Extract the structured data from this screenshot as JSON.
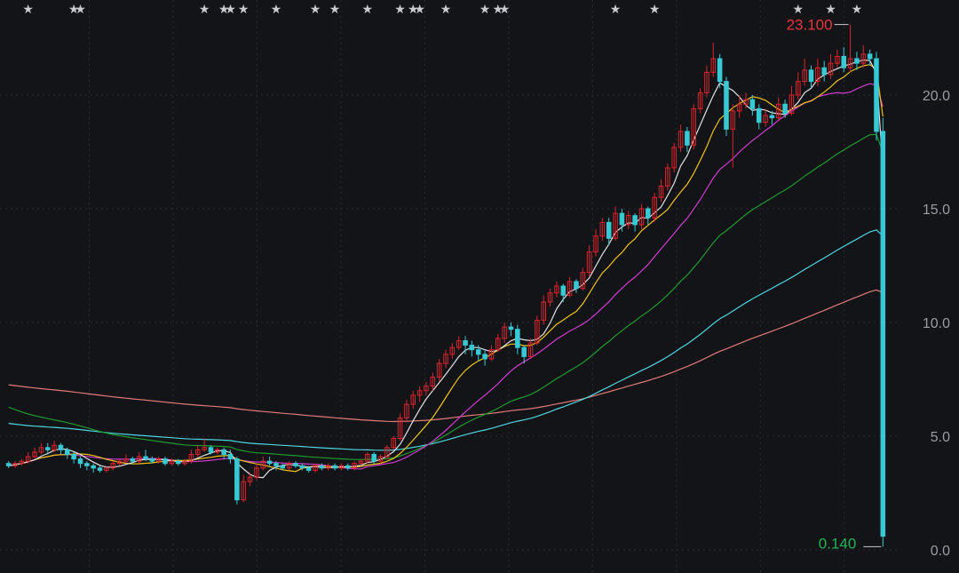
{
  "colors": {
    "background": "#131418",
    "grid": "#2a2c33",
    "up": "#d9252c",
    "down": "#37c9d4",
    "ma5": "#e3e3e3",
    "ma10": "#f0c419",
    "ma20": "#d23bd2",
    "ma60": "#1f9a2e",
    "ma120": "#4fd5e0",
    "ma250": "#e07a7a",
    "high_label": "#e8353c",
    "low_label": "#22b455",
    "star": "#c9cbd1"
  },
  "chart_data": {
    "type": "candlestick",
    "y_axis": {
      "ticks": [
        "0.0",
        "5.0",
        "10.0",
        "15.0",
        "20.0"
      ],
      "range": [
        0,
        24
      ],
      "position": "right"
    },
    "grid": true,
    "markers": {
      "symbol": "★",
      "candle_indices": [
        3,
        10,
        11,
        30,
        33,
        34,
        36,
        41,
        47,
        50,
        55,
        60,
        62,
        63,
        67,
        73,
        75,
        76,
        93,
        99,
        121,
        126,
        130
      ]
    },
    "annotations": {
      "high": {
        "label": "23.100",
        "value": 23.1
      },
      "low": {
        "label": "0.140",
        "value": 0.14
      }
    },
    "candles": [
      [
        3.8,
        3.7,
        3.9,
        3.6
      ],
      [
        3.7,
        3.8,
        3.9,
        3.6
      ],
      [
        3.8,
        3.9,
        4.0,
        3.7
      ],
      [
        3.9,
        4.1,
        4.3,
        3.8
      ],
      [
        4.1,
        4.3,
        4.5,
        4.0
      ],
      [
        4.3,
        4.5,
        4.7,
        4.2
      ],
      [
        4.5,
        4.4,
        4.7,
        4.2
      ],
      [
        4.4,
        4.6,
        4.8,
        4.3
      ],
      [
        4.6,
        4.4,
        4.7,
        4.2
      ],
      [
        4.4,
        4.2,
        4.5,
        4.0
      ],
      [
        4.2,
        4.0,
        4.3,
        3.8
      ],
      [
        4.0,
        3.8,
        4.1,
        3.6
      ],
      [
        3.8,
        3.7,
        3.9,
        3.5
      ],
      [
        3.7,
        3.6,
        3.8,
        3.4
      ],
      [
        3.6,
        3.5,
        3.7,
        3.4
      ],
      [
        3.5,
        3.6,
        3.7,
        3.4
      ],
      [
        3.6,
        3.8,
        3.9,
        3.5
      ],
      [
        3.8,
        3.9,
        4.0,
        3.7
      ],
      [
        3.9,
        4.0,
        4.2,
        3.8
      ],
      [
        4.0,
        3.9,
        4.1,
        3.8
      ],
      [
        3.9,
        4.1,
        4.3,
        3.8
      ],
      [
        4.1,
        4.0,
        4.4,
        3.9
      ],
      [
        4.0,
        3.9,
        4.1,
        3.8
      ],
      [
        3.9,
        4.0,
        4.1,
        3.8
      ],
      [
        4.0,
        3.8,
        4.1,
        3.7
      ],
      [
        3.8,
        3.9,
        4.0,
        3.7
      ],
      [
        3.9,
        3.8,
        4.0,
        3.7
      ],
      [
        3.8,
        3.9,
        4.0,
        3.7
      ],
      [
        3.9,
        4.2,
        4.4,
        3.8
      ],
      [
        4.2,
        4.4,
        4.6,
        4.1
      ],
      [
        4.4,
        4.5,
        4.9,
        4.3
      ],
      [
        4.5,
        4.3,
        4.6,
        4.2
      ],
      [
        4.3,
        4.4,
        4.5,
        4.2
      ],
      [
        4.4,
        4.2,
        4.5,
        4.0
      ],
      [
        4.2,
        4.0,
        4.4,
        3.8
      ],
      [
        4.0,
        2.2,
        4.1,
        2.0
      ],
      [
        2.2,
        3.0,
        3.3,
        2.1
      ],
      [
        3.0,
        3.2,
        3.4,
        2.8
      ],
      [
        3.2,
        3.6,
        3.8,
        3.1
      ],
      [
        3.6,
        3.9,
        4.1,
        3.5
      ],
      [
        3.9,
        3.8,
        4.1,
        3.7
      ],
      [
        3.8,
        3.7,
        3.9,
        3.5
      ],
      [
        3.7,
        3.6,
        3.8,
        3.5
      ],
      [
        3.6,
        3.8,
        3.9,
        3.5
      ],
      [
        3.8,
        3.7,
        3.9,
        3.6
      ],
      [
        3.7,
        3.6,
        3.8,
        3.5
      ],
      [
        3.6,
        3.5,
        3.7,
        3.4
      ],
      [
        3.5,
        3.7,
        3.8,
        3.4
      ],
      [
        3.7,
        3.6,
        3.8,
        3.5
      ],
      [
        3.6,
        3.7,
        3.8,
        3.5
      ],
      [
        3.7,
        3.6,
        3.8,
        3.5
      ],
      [
        3.6,
        3.7,
        3.8,
        3.5
      ],
      [
        3.7,
        3.6,
        3.8,
        3.5
      ],
      [
        3.6,
        3.8,
        3.9,
        3.5
      ],
      [
        3.8,
        3.9,
        4.0,
        3.7
      ],
      [
        3.9,
        4.2,
        4.3,
        3.8
      ],
      [
        4.2,
        3.9,
        4.3,
        3.8
      ],
      [
        3.9,
        4.1,
        4.2,
        3.8
      ],
      [
        4.1,
        4.5,
        4.6,
        4.0
      ],
      [
        4.5,
        4.9,
        5.0,
        4.4
      ],
      [
        4.9,
        5.8,
        6.0,
        4.8
      ],
      [
        5.8,
        6.4,
        6.6,
        5.6
      ],
      [
        6.4,
        6.8,
        7.0,
        6.2
      ],
      [
        6.8,
        7.0,
        7.2,
        6.5
      ],
      [
        7.0,
        7.2,
        7.4,
        6.8
      ],
      [
        7.2,
        7.6,
        7.8,
        7.0
      ],
      [
        7.6,
        8.2,
        8.4,
        7.4
      ],
      [
        8.2,
        8.6,
        8.8,
        8.0
      ],
      [
        8.6,
        8.9,
        9.1,
        8.4
      ],
      [
        8.9,
        9.2,
        9.4,
        8.8
      ],
      [
        9.2,
        9.0,
        9.4,
        8.6
      ],
      [
        9.0,
        8.8,
        9.2,
        8.5
      ],
      [
        8.8,
        8.6,
        9.0,
        8.3
      ],
      [
        8.6,
        8.4,
        8.8,
        8.1
      ],
      [
        8.4,
        8.8,
        9.0,
        8.3
      ],
      [
        8.8,
        9.3,
        9.5,
        8.7
      ],
      [
        9.3,
        9.8,
        10.0,
        9.1
      ],
      [
        9.8,
        9.7,
        10.0,
        9.4
      ],
      [
        9.7,
        8.9,
        9.9,
        8.6
      ],
      [
        8.9,
        8.5,
        9.0,
        8.2
      ],
      [
        8.5,
        9.1,
        9.3,
        8.4
      ],
      [
        9.1,
        10.1,
        10.3,
        9.0
      ],
      [
        10.1,
        10.9,
        11.2,
        9.9
      ],
      [
        10.9,
        11.3,
        11.5,
        10.7
      ],
      [
        11.3,
        11.6,
        11.8,
        11.1
      ],
      [
        11.6,
        11.2,
        11.7,
        10.9
      ],
      [
        11.2,
        11.8,
        12.0,
        11.1
      ],
      [
        11.8,
        11.5,
        11.9,
        11.3
      ],
      [
        11.5,
        12.2,
        12.4,
        11.4
      ],
      [
        12.2,
        13.1,
        13.4,
        12.0
      ],
      [
        13.1,
        13.8,
        14.1,
        12.9
      ],
      [
        13.8,
        14.4,
        14.6,
        13.6
      ],
      [
        14.4,
        13.7,
        14.6,
        13.4
      ],
      [
        13.7,
        14.8,
        15.1,
        13.6
      ],
      [
        14.8,
        14.3,
        15.0,
        14.0
      ],
      [
        14.3,
        14.7,
        14.9,
        14.1
      ],
      [
        14.7,
        14.3,
        14.8,
        14.0
      ],
      [
        14.3,
        15.0,
        15.2,
        14.1
      ],
      [
        15.0,
        14.6,
        15.1,
        14.3
      ],
      [
        14.6,
        15.5,
        15.7,
        14.4
      ],
      [
        15.5,
        16.0,
        16.3,
        15.3
      ],
      [
        16.0,
        16.8,
        17.0,
        15.8
      ],
      [
        16.8,
        17.7,
        17.9,
        16.6
      ],
      [
        17.7,
        18.4,
        18.7,
        17.5
      ],
      [
        18.4,
        17.8,
        18.6,
        17.5
      ],
      [
        17.8,
        19.4,
        19.6,
        17.6
      ],
      [
        19.4,
        20.1,
        20.3,
        19.2
      ],
      [
        20.1,
        21.0,
        21.3,
        19.9
      ],
      [
        21.0,
        21.6,
        22.3,
        20.8
      ],
      [
        21.6,
        20.6,
        21.8,
        20.3
      ],
      [
        20.6,
        18.5,
        20.8,
        18.2
      ],
      [
        18.5,
        19.3,
        19.6,
        16.8
      ],
      [
        19.3,
        19.6,
        20.0,
        19.0
      ],
      [
        19.6,
        19.8,
        20.1,
        19.4
      ],
      [
        19.8,
        19.4,
        20.0,
        19.1
      ],
      [
        19.4,
        18.8,
        19.6,
        18.5
      ],
      [
        18.8,
        19.1,
        19.4,
        18.6
      ],
      [
        19.1,
        19.0,
        19.3,
        18.7
      ],
      [
        19.0,
        19.6,
        19.9,
        18.9
      ],
      [
        19.6,
        19.2,
        19.8,
        19.0
      ],
      [
        19.2,
        20.0,
        20.4,
        19.1
      ],
      [
        20.0,
        20.6,
        21.0,
        19.8
      ],
      [
        20.6,
        21.1,
        21.6,
        20.4
      ],
      [
        21.1,
        20.6,
        21.3,
        20.3
      ],
      [
        20.6,
        21.2,
        21.6,
        20.4
      ],
      [
        21.2,
        20.9,
        21.5,
        20.6
      ],
      [
        20.9,
        21.4,
        21.8,
        20.7
      ],
      [
        21.4,
        21.7,
        22.0,
        21.2
      ],
      [
        21.7,
        21.2,
        22.1,
        21.0
      ],
      [
        21.2,
        21.6,
        23.1,
        21.0
      ],
      [
        21.6,
        21.4,
        21.9,
        21.1
      ],
      [
        21.4,
        21.8,
        22.2,
        21.2
      ],
      [
        21.8,
        21.6,
        22.0,
        21.3
      ],
      [
        21.6,
        18.4,
        21.9,
        18.0
      ],
      [
        18.4,
        0.6,
        19.0,
        0.14
      ]
    ]
  }
}
